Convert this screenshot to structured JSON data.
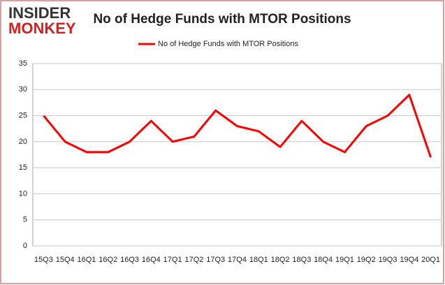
{
  "logo": {
    "line1": "INSIDER",
    "line2": "MONKEY"
  },
  "chart_data": {
    "type": "line",
    "title": "No of Hedge Funds with MTOR Positions",
    "categories": [
      "15Q3",
      "15Q4",
      "16Q1",
      "16Q2",
      "16Q3",
      "16Q4",
      "17Q1",
      "17Q2",
      "17Q3",
      "17Q4",
      "18Q1",
      "18Q2",
      "18Q3",
      "18Q4",
      "19Q1",
      "19Q2",
      "19Q3",
      "19Q4",
      "20Q1"
    ],
    "series": [
      {
        "name": "No of Hedge Funds with MTOR Positions",
        "color": "#ff0000",
        "values": [
          25,
          20,
          18,
          18,
          20,
          24,
          20,
          21,
          26,
          23,
          22,
          19,
          24,
          20,
          18,
          23,
          25,
          29,
          17
        ]
      }
    ],
    "ylim": [
      0,
      35
    ],
    "yticks": [
      0,
      5,
      10,
      15,
      20,
      25,
      30,
      35
    ],
    "grid": true,
    "legend": "top"
  }
}
